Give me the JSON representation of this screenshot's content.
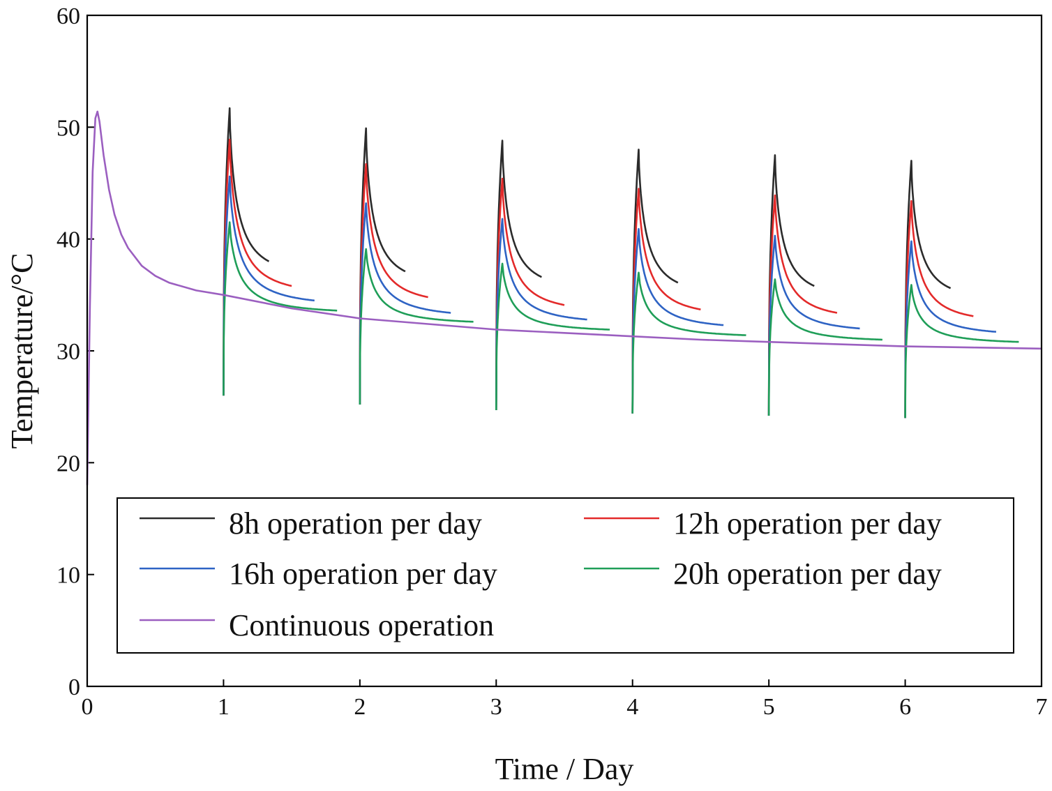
{
  "chart_data": {
    "type": "line",
    "title": "",
    "xlabel": "Time / Day",
    "ylabel": "Temperature/°C",
    "xlim": [
      0,
      7
    ],
    "ylim": [
      0,
      60
    ],
    "xticks": [
      0,
      1,
      2,
      3,
      4,
      5,
      6,
      7
    ],
    "yticks": [
      0,
      10,
      20,
      30,
      40,
      50,
      60
    ],
    "grid": false,
    "legend_position": "bottom",
    "series": [
      {
        "name": "8h operation per day",
        "color": "#2b2b2b",
        "cycles": [
          {
            "start_day": 1,
            "start_temp": 26.0,
            "peak_temp": 51.7,
            "end_day": 1.333,
            "end_temp": 38.0
          },
          {
            "start_day": 2,
            "start_temp": 25.2,
            "peak_temp": 49.9,
            "end_day": 2.333,
            "end_temp": 37.1
          },
          {
            "start_day": 3,
            "start_temp": 24.7,
            "peak_temp": 48.8,
            "end_day": 3.333,
            "end_temp": 36.6
          },
          {
            "start_day": 4,
            "start_temp": 24.4,
            "peak_temp": 48.0,
            "end_day": 4.333,
            "end_temp": 36.1
          },
          {
            "start_day": 5,
            "start_temp": 24.2,
            "peak_temp": 47.5,
            "end_day": 5.333,
            "end_temp": 35.8
          },
          {
            "start_day": 6,
            "start_temp": 24.0,
            "peak_temp": 47.0,
            "end_day": 6.333,
            "end_temp": 35.6
          }
        ]
      },
      {
        "name": "12h operation per day",
        "color": "#e32a2a",
        "cycles": [
          {
            "start_day": 1,
            "start_temp": 26.0,
            "peak_temp": 48.9,
            "end_day": 1.5,
            "end_temp": 35.8
          },
          {
            "start_day": 2,
            "start_temp": 25.2,
            "peak_temp": 46.7,
            "end_day": 2.5,
            "end_temp": 34.8
          },
          {
            "start_day": 3,
            "start_temp": 24.7,
            "peak_temp": 45.4,
            "end_day": 3.5,
            "end_temp": 34.1
          },
          {
            "start_day": 4,
            "start_temp": 24.4,
            "peak_temp": 44.5,
            "end_day": 4.5,
            "end_temp": 33.7
          },
          {
            "start_day": 5,
            "start_temp": 24.2,
            "peak_temp": 43.9,
            "end_day": 5.5,
            "end_temp": 33.4
          },
          {
            "start_day": 6,
            "start_temp": 24.0,
            "peak_temp": 43.4,
            "end_day": 6.5,
            "end_temp": 33.1
          }
        ]
      },
      {
        "name": "16h operation per day",
        "color": "#2e63c4",
        "cycles": [
          {
            "start_day": 1,
            "start_temp": 26.0,
            "peak_temp": 45.6,
            "end_day": 1.667,
            "end_temp": 34.5
          },
          {
            "start_day": 2,
            "start_temp": 25.2,
            "peak_temp": 43.2,
            "end_day": 2.667,
            "end_temp": 33.4
          },
          {
            "start_day": 3,
            "start_temp": 24.7,
            "peak_temp": 41.8,
            "end_day": 3.667,
            "end_temp": 32.8
          },
          {
            "start_day": 4,
            "start_temp": 24.4,
            "peak_temp": 40.9,
            "end_day": 4.667,
            "end_temp": 32.3
          },
          {
            "start_day": 5,
            "start_temp": 24.2,
            "peak_temp": 40.3,
            "end_day": 5.667,
            "end_temp": 32.0
          },
          {
            "start_day": 6,
            "start_temp": 24.0,
            "peak_temp": 39.8,
            "end_day": 6.667,
            "end_temp": 31.7
          }
        ]
      },
      {
        "name": "20h operation per day",
        "color": "#1f9e58",
        "cycles": [
          {
            "start_day": 1,
            "start_temp": 26.0,
            "peak_temp": 41.5,
            "end_day": 1.833,
            "end_temp": 33.6
          },
          {
            "start_day": 2,
            "start_temp": 25.2,
            "peak_temp": 39.1,
            "end_day": 2.833,
            "end_temp": 32.6
          },
          {
            "start_day": 3,
            "start_temp": 24.7,
            "peak_temp": 37.8,
            "end_day": 3.833,
            "end_temp": 31.9
          },
          {
            "start_day": 4,
            "start_temp": 24.4,
            "peak_temp": 37.0,
            "end_day": 4.833,
            "end_temp": 31.4
          },
          {
            "start_day": 5,
            "start_temp": 24.2,
            "peak_temp": 36.4,
            "end_day": 5.833,
            "end_temp": 31.0
          },
          {
            "start_day": 6,
            "start_temp": 24.0,
            "peak_temp": 35.9,
            "end_day": 6.833,
            "end_temp": 30.8
          }
        ]
      },
      {
        "name": "Continuous operation",
        "color": "#9b5fc0",
        "x": [
          0,
          0.02,
          0.04,
          0.06,
          0.075,
          0.09,
          0.12,
          0.16,
          0.2,
          0.25,
          0.3,
          0.4,
          0.5,
          0.6,
          0.8,
          1.0,
          1.5,
          2.0,
          2.5,
          3.0,
          3.5,
          4.0,
          4.5,
          5.0,
          5.5,
          6.0,
          6.5,
          7.0
        ],
        "values": [
          18.0,
          34.0,
          46.0,
          50.8,
          51.4,
          50.5,
          47.5,
          44.4,
          42.2,
          40.4,
          39.2,
          37.6,
          36.7,
          36.1,
          35.4,
          35.0,
          33.8,
          32.9,
          32.4,
          31.9,
          31.6,
          31.3,
          31.0,
          30.8,
          30.6,
          30.4,
          30.3,
          30.2
        ]
      }
    ]
  }
}
